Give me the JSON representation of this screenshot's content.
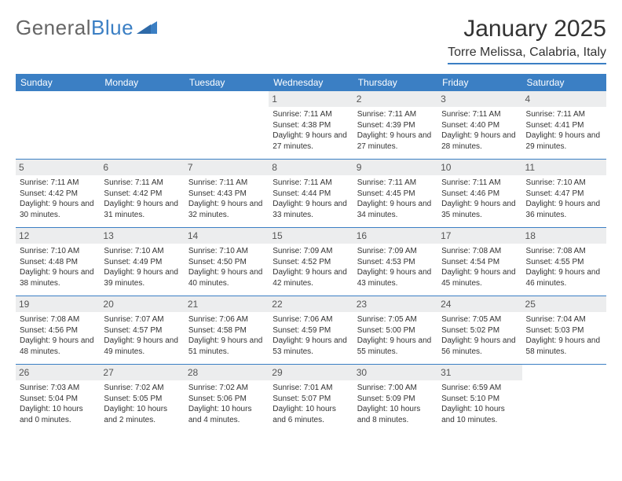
{
  "brand": {
    "part1": "General",
    "part2": "Blue"
  },
  "title": "January 2025",
  "location": "Torre Melissa, Calabria, Italy",
  "colors": {
    "accent": "#3b7fc4",
    "daynum_bg": "#ecedee",
    "text": "#333333",
    "bg": "#ffffff"
  },
  "weekdays": [
    "Sunday",
    "Monday",
    "Tuesday",
    "Wednesday",
    "Thursday",
    "Friday",
    "Saturday"
  ],
  "weeks": [
    [
      null,
      null,
      null,
      {
        "n": "1",
        "sunrise": "7:11 AM",
        "sunset": "4:38 PM",
        "day_h": "9",
        "day_m": "27"
      },
      {
        "n": "2",
        "sunrise": "7:11 AM",
        "sunset": "4:39 PM",
        "day_h": "9",
        "day_m": "27"
      },
      {
        "n": "3",
        "sunrise": "7:11 AM",
        "sunset": "4:40 PM",
        "day_h": "9",
        "day_m": "28"
      },
      {
        "n": "4",
        "sunrise": "7:11 AM",
        "sunset": "4:41 PM",
        "day_h": "9",
        "day_m": "29"
      }
    ],
    [
      {
        "n": "5",
        "sunrise": "7:11 AM",
        "sunset": "4:42 PM",
        "day_h": "9",
        "day_m": "30"
      },
      {
        "n": "6",
        "sunrise": "7:11 AM",
        "sunset": "4:42 PM",
        "day_h": "9",
        "day_m": "31"
      },
      {
        "n": "7",
        "sunrise": "7:11 AM",
        "sunset": "4:43 PM",
        "day_h": "9",
        "day_m": "32"
      },
      {
        "n": "8",
        "sunrise": "7:11 AM",
        "sunset": "4:44 PM",
        "day_h": "9",
        "day_m": "33"
      },
      {
        "n": "9",
        "sunrise": "7:11 AM",
        "sunset": "4:45 PM",
        "day_h": "9",
        "day_m": "34"
      },
      {
        "n": "10",
        "sunrise": "7:11 AM",
        "sunset": "4:46 PM",
        "day_h": "9",
        "day_m": "35"
      },
      {
        "n": "11",
        "sunrise": "7:10 AM",
        "sunset": "4:47 PM",
        "day_h": "9",
        "day_m": "36"
      }
    ],
    [
      {
        "n": "12",
        "sunrise": "7:10 AM",
        "sunset": "4:48 PM",
        "day_h": "9",
        "day_m": "38"
      },
      {
        "n": "13",
        "sunrise": "7:10 AM",
        "sunset": "4:49 PM",
        "day_h": "9",
        "day_m": "39"
      },
      {
        "n": "14",
        "sunrise": "7:10 AM",
        "sunset": "4:50 PM",
        "day_h": "9",
        "day_m": "40"
      },
      {
        "n": "15",
        "sunrise": "7:09 AM",
        "sunset": "4:52 PM",
        "day_h": "9",
        "day_m": "42"
      },
      {
        "n": "16",
        "sunrise": "7:09 AM",
        "sunset": "4:53 PM",
        "day_h": "9",
        "day_m": "43"
      },
      {
        "n": "17",
        "sunrise": "7:08 AM",
        "sunset": "4:54 PM",
        "day_h": "9",
        "day_m": "45"
      },
      {
        "n": "18",
        "sunrise": "7:08 AM",
        "sunset": "4:55 PM",
        "day_h": "9",
        "day_m": "46"
      }
    ],
    [
      {
        "n": "19",
        "sunrise": "7:08 AM",
        "sunset": "4:56 PM",
        "day_h": "9",
        "day_m": "48"
      },
      {
        "n": "20",
        "sunrise": "7:07 AM",
        "sunset": "4:57 PM",
        "day_h": "9",
        "day_m": "49"
      },
      {
        "n": "21",
        "sunrise": "7:06 AM",
        "sunset": "4:58 PM",
        "day_h": "9",
        "day_m": "51"
      },
      {
        "n": "22",
        "sunrise": "7:06 AM",
        "sunset": "4:59 PM",
        "day_h": "9",
        "day_m": "53"
      },
      {
        "n": "23",
        "sunrise": "7:05 AM",
        "sunset": "5:00 PM",
        "day_h": "9",
        "day_m": "55"
      },
      {
        "n": "24",
        "sunrise": "7:05 AM",
        "sunset": "5:02 PM",
        "day_h": "9",
        "day_m": "56"
      },
      {
        "n": "25",
        "sunrise": "7:04 AM",
        "sunset": "5:03 PM",
        "day_h": "9",
        "day_m": "58"
      }
    ],
    [
      {
        "n": "26",
        "sunrise": "7:03 AM",
        "sunset": "5:04 PM",
        "day_h": "10",
        "day_m": "0"
      },
      {
        "n": "27",
        "sunrise": "7:02 AM",
        "sunset": "5:05 PM",
        "day_h": "10",
        "day_m": "2"
      },
      {
        "n": "28",
        "sunrise": "7:02 AM",
        "sunset": "5:06 PM",
        "day_h": "10",
        "day_m": "4"
      },
      {
        "n": "29",
        "sunrise": "7:01 AM",
        "sunset": "5:07 PM",
        "day_h": "10",
        "day_m": "6"
      },
      {
        "n": "30",
        "sunrise": "7:00 AM",
        "sunset": "5:09 PM",
        "day_h": "10",
        "day_m": "8"
      },
      {
        "n": "31",
        "sunrise": "6:59 AM",
        "sunset": "5:10 PM",
        "day_h": "10",
        "day_m": "10"
      },
      null
    ]
  ],
  "labels": {
    "sunrise": "Sunrise:",
    "sunset": "Sunset:",
    "daylight": "Daylight:",
    "hours": "hours",
    "and": "and",
    "minutes": "minutes."
  }
}
